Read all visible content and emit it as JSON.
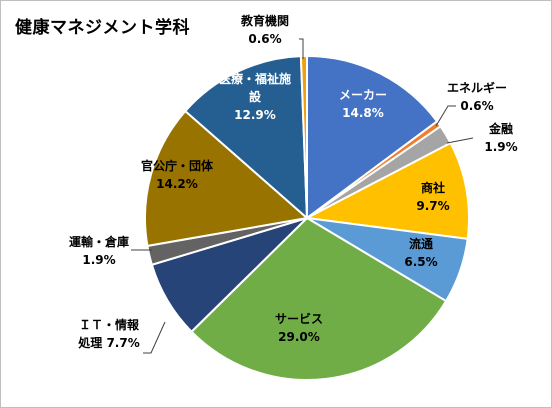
{
  "colors": {
    "background": "#ffffff",
    "slice_border": "#ffffff",
    "leader_line": "#404040"
  },
  "chart_data": {
    "type": "pie",
    "title": "健康マネジメント学科",
    "slices": [
      {
        "label": "メーカー",
        "value": 14.8,
        "pct_text": "14.8%",
        "color": "#4472c4",
        "label_color": "#ffffff"
      },
      {
        "label": "エネルギー",
        "value": 0.6,
        "pct_text": "0.6%",
        "color": "#ed7d31",
        "label_color": "#000000"
      },
      {
        "label": "金融",
        "value": 1.9,
        "pct_text": "1.9%",
        "color": "#a5a5a5",
        "label_color": "#000000"
      },
      {
        "label": "商社",
        "value": 9.7,
        "pct_text": "9.7%",
        "color": "#ffc000",
        "label_color": "#000000"
      },
      {
        "label": "流通",
        "value": 6.5,
        "pct_text": "6.5%",
        "color": "#5b9bd5",
        "label_color": "#000000"
      },
      {
        "label": "サービス",
        "value": 29.0,
        "pct_text": "29.0%",
        "color": "#70ad47",
        "label_color": "#000000"
      },
      {
        "label": "ＩＴ・情報処理",
        "value": 7.7,
        "pct_text": "7.7%",
        "color": "#264478",
        "label_color": "#000000",
        "label_lines": [
          "ＩＴ・情報",
          "処理 7.7%"
        ]
      },
      {
        "label": "運輸・倉庫",
        "value": 1.9,
        "pct_text": "1.9%",
        "color": "#636363",
        "label_color": "#000000"
      },
      {
        "label": "官公庁・団体",
        "value": 14.2,
        "pct_text": "14.2%",
        "color": "#997300",
        "label_color": "#000000"
      },
      {
        "label": "医療・福祉施設",
        "value": 12.9,
        "pct_text": "12.9%",
        "color": "#255e91",
        "label_color": "#ffffff",
        "label_lines": [
          "医療・福祉施",
          "設",
          "12.9%"
        ]
      },
      {
        "label": "教育機関",
        "value": 0.6,
        "pct_text": "0.6%",
        "color": "#f29f0f",
        "label_color": "#000000"
      }
    ],
    "start_angle_deg": 0,
    "direction": "clockwise",
    "legend": "none",
    "data_labels": "category and percentage"
  }
}
